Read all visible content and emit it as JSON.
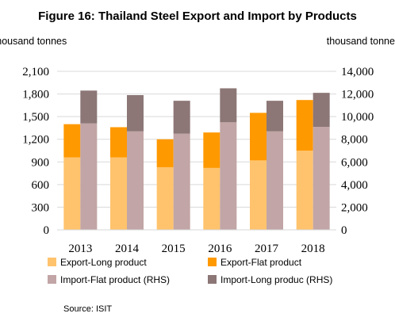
{
  "chart_data": {
    "type": "bar",
    "title": "Figure 16: Thailand Steel Export and Import by Products",
    "ylabel_left": "thousand tonnes",
    "ylabel_right": "thousand tonnes",
    "categories": [
      "2013",
      "2014",
      "2015",
      "2016",
      "2017",
      "2018"
    ],
    "ylim_left": [
      0,
      2100
    ],
    "ylim_right": [
      0,
      14000
    ],
    "yticks_left": [
      "0",
      "300",
      "600",
      "900",
      "1,200",
      "1,500",
      "1,800",
      "2,100"
    ],
    "yticks_right": [
      "0",
      "2,000",
      "4,000",
      "6,000",
      "8,000",
      "10,000",
      "12,000",
      "14,000"
    ],
    "grid": true,
    "legend_position": "bottom",
    "series": [
      {
        "name": "Export-Long product",
        "axis": "left",
        "stack": "export",
        "color": "#FFC36D",
        "values": [
          960,
          960,
          830,
          820,
          920,
          1050
        ]
      },
      {
        "name": "Export-Flat product",
        "axis": "left",
        "stack": "export",
        "color": "#FF9900",
        "values": [
          440,
          400,
          370,
          470,
          630,
          670
        ]
      },
      {
        "name": "Import-Flat product (RHS)",
        "axis": "right",
        "stack": "import",
        "color": "#C2A5A6",
        "values": [
          9400,
          8700,
          8500,
          9500,
          8700,
          9100
        ]
      },
      {
        "name": "Import-Long produc (RHS)",
        "axis": "right",
        "stack": "import",
        "color": "#8C7676",
        "values": [
          2900,
          3200,
          2900,
          3000,
          2700,
          3000
        ]
      }
    ],
    "source": "Source: ISIT"
  }
}
